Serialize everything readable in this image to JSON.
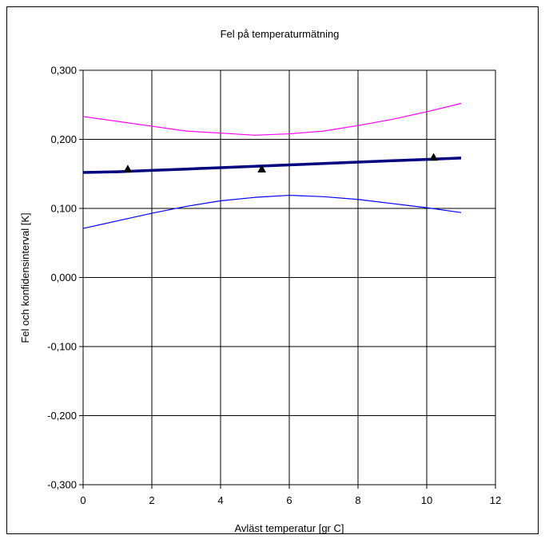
{
  "chart_data": {
    "type": "line",
    "title": "Fel på temperaturmätning",
    "xlabel": "Avläst temperatur [gr C]",
    "ylabel": "Fel och konfidensinterval [K]",
    "xlim": [
      0,
      12
    ],
    "ylim": [
      -0.3,
      0.3
    ],
    "x_ticks": [
      0,
      2,
      4,
      6,
      8,
      10,
      12
    ],
    "x_tick_labels": [
      "0",
      "2",
      "4",
      "6",
      "8",
      "10",
      "12"
    ],
    "y_ticks": [
      0.3,
      0.2,
      0.1,
      0.0,
      -0.1,
      -0.2,
      -0.3
    ],
    "y_tick_labels": [
      "0,300",
      "0,200",
      "0,100",
      "0,000",
      "-0,100",
      "-0,200",
      "-0,300"
    ],
    "grid": true,
    "series": [
      {
        "kind": "line",
        "color": "#ff00ff",
        "x": [
          0,
          1,
          2,
          3,
          4,
          5,
          6,
          7,
          8,
          9,
          10,
          11
        ],
        "values": [
          0.233,
          0.226,
          0.219,
          0.212,
          0.209,
          0.206,
          0.208,
          0.212,
          0.22,
          0.229,
          0.24,
          0.252
        ]
      },
      {
        "kind": "line",
        "color": "#000080",
        "x": [
          0,
          1,
          2,
          3,
          4,
          5,
          6,
          7,
          8,
          9,
          10,
          11
        ],
        "values": [
          0.152,
          0.153,
          0.155,
          0.157,
          0.159,
          0.161,
          0.163,
          0.165,
          0.167,
          0.169,
          0.171,
          0.173
        ]
      },
      {
        "kind": "line",
        "color": "#0000ff",
        "x": [
          0,
          1,
          2,
          3,
          4,
          5,
          6,
          7,
          8,
          9,
          10,
          11
        ],
        "values": [
          0.071,
          0.082,
          0.093,
          0.103,
          0.111,
          0.116,
          0.119,
          0.117,
          0.113,
          0.107,
          0.101,
          0.094
        ]
      },
      {
        "kind": "scatter",
        "marker": "triangle",
        "color": "#000000",
        "x": [
          1.3,
          5.2,
          10.2
        ],
        "values": [
          0.157,
          0.157,
          0.174
        ]
      }
    ]
  }
}
